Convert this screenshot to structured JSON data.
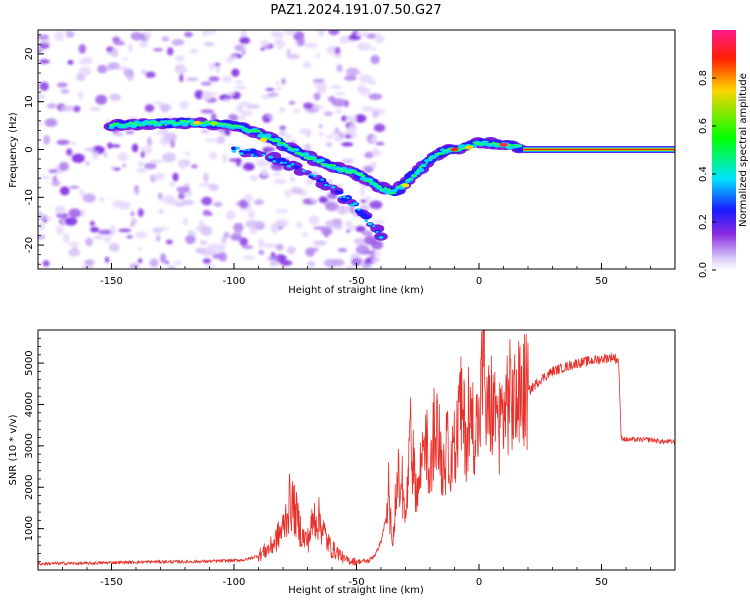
{
  "figure_title": "PAZ1.2024.191.07.50.G27",
  "chart_data": [
    {
      "type": "heatmap",
      "xlabel": "Height of straight line (km)",
      "ylabel": "Frequency (Hz)",
      "xlim": [
        -180,
        80
      ],
      "ylim": [
        -25,
        25
      ],
      "x_ticks": [
        -150,
        -100,
        -50,
        0,
        50
      ],
      "y_ticks": [
        -20,
        -10,
        0,
        10,
        20
      ],
      "colorbar": {
        "label": "Normalized spectral amplitude",
        "range": [
          0,
          1
        ],
        "ticks": [
          0.0,
          0.2,
          0.4,
          0.6,
          0.8
        ]
      },
      "ridge": {
        "x": [
          -150,
          -140,
          -130,
          -120,
          -110,
          -100,
          -90,
          -80,
          -70,
          -60,
          -50,
          -40,
          -35,
          -30,
          -25,
          -20,
          -15,
          -10,
          -5,
          0,
          5,
          10,
          15,
          18,
          80
        ],
        "y": [
          5,
          5.3,
          5.5,
          5.6,
          5.5,
          5,
          3.5,
          1,
          -1.5,
          -3.5,
          -5,
          -8,
          -9,
          -7,
          -4.5,
          -2,
          -0.5,
          0,
          0.5,
          1.5,
          1.2,
          1,
          0.8,
          0,
          0
        ]
      },
      "secondary_branch": {
        "x": [
          -100,
          -90,
          -80,
          -70,
          -60,
          -55,
          -50,
          -45,
          -40
        ],
        "y": [
          0,
          -1,
          -2.5,
          -5,
          -8,
          -10,
          -12,
          -15,
          -18
        ]
      }
    },
    {
      "type": "line",
      "xlabel": "Height of straight line (km)",
      "ylabel": "SNR (10 * v/v)",
      "xlim": [
        -180,
        80
      ],
      "ylim": [
        0,
        5800
      ],
      "x_ticks": [
        -150,
        -100,
        -50,
        0,
        50
      ],
      "y_ticks": [
        1000,
        2000,
        3000,
        4000,
        5000
      ],
      "color": "#e8302a",
      "series": [
        {
          "x": [
            -180,
            -170,
            -160,
            -150,
            -140,
            -130,
            -120,
            -110,
            -100,
            -95,
            -90,
            -85,
            -80,
            -77,
            -75,
            -72,
            -70,
            -67,
            -65,
            -62,
            -60,
            -57,
            -55,
            -50,
            -45,
            -42,
            -40,
            -37,
            -35,
            -33,
            -30,
            -28,
            -25,
            -22,
            -20,
            -18,
            -15,
            -12,
            -10,
            -8,
            -5,
            -3,
            0,
            2,
            3,
            5,
            8,
            10,
            12,
            15,
            18,
            20,
            25,
            30,
            35,
            40,
            45,
            50,
            55,
            57,
            58,
            60,
            65,
            70,
            75,
            80
          ],
          "y": [
            150,
            160,
            160,
            180,
            190,
            200,
            200,
            210,
            230,
            250,
            350,
            550,
            1000,
            1700,
            1400,
            800,
            700,
            1300,
            1200,
            700,
            500,
            400,
            250,
            200,
            220,
            400,
            700,
            1500,
            800,
            2200,
            1200,
            3000,
            1800,
            3500,
            2000,
            3800,
            2500,
            3000,
            2400,
            4000,
            3200,
            3600,
            3400,
            5500,
            3600,
            4000,
            3500,
            3800,
            4200,
            4000,
            4300,
            4300,
            4600,
            4800,
            4900,
            5000,
            5050,
            5100,
            5150,
            5050,
            3200,
            3150,
            3150,
            3150,
            3100,
            3100
          ]
        }
      ]
    }
  ]
}
